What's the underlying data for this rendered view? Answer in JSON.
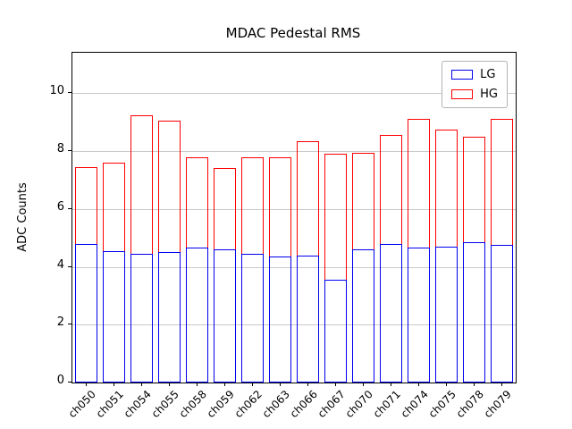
{
  "chart_data": {
    "type": "bar",
    "title": "MDAC Pedestal RMS",
    "xlabel": "",
    "ylabel": "ADC Counts",
    "categories": [
      "ch050",
      "ch051",
      "ch054",
      "ch055",
      "ch058",
      "ch059",
      "ch062",
      "ch063",
      "ch066",
      "ch067",
      "ch070",
      "ch071",
      "ch074",
      "ch075",
      "ch078",
      "ch079"
    ],
    "series": [
      {
        "name": "LG",
        "color": "#0000ee",
        "values": [
          4.8,
          4.55,
          4.45,
          4.5,
          4.65,
          4.6,
          4.45,
          4.35,
          4.4,
          3.55,
          4.6,
          4.8,
          4.65,
          4.7,
          4.85,
          4.75
        ]
      },
      {
        "name": "HG",
        "color": "#ff0000",
        "values": [
          7.45,
          7.6,
          9.25,
          9.05,
          7.8,
          7.4,
          7.78,
          7.78,
          8.35,
          7.9,
          7.95,
          8.55,
          9.1,
          8.75,
          8.5,
          9.1
        ]
      }
    ],
    "ylim": [
      0,
      11.4
    ],
    "yticks": [
      0,
      2,
      4,
      6,
      8,
      10
    ],
    "grid": true,
    "legend_position": "upper right",
    "bar_style": "unfilled-outline"
  }
}
